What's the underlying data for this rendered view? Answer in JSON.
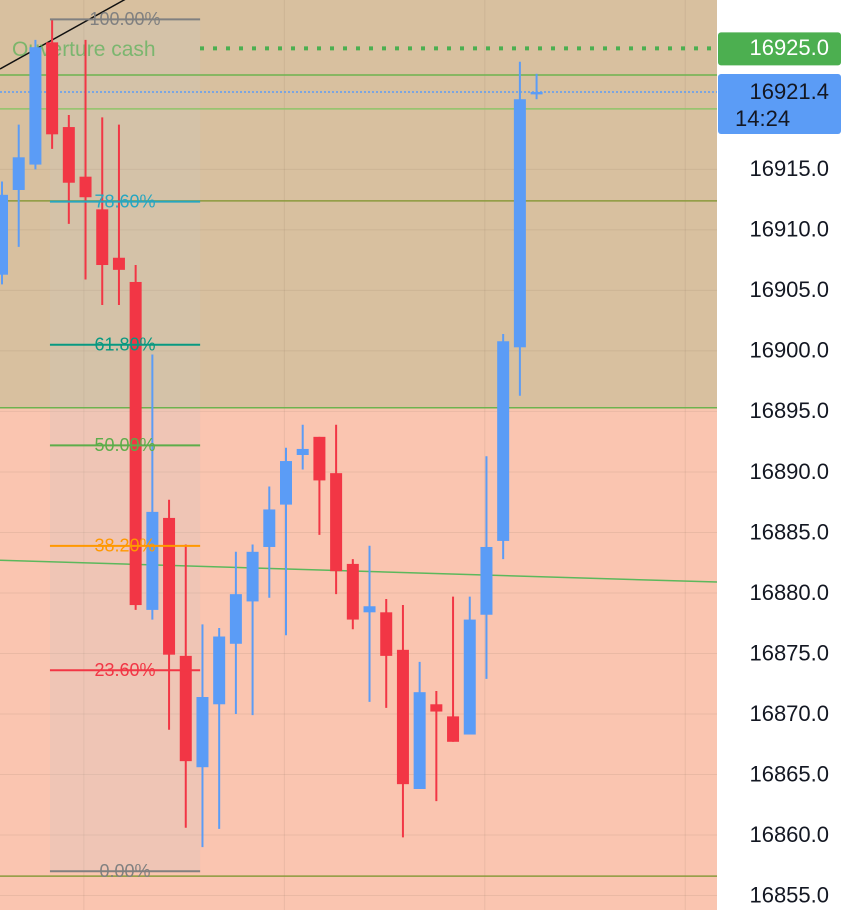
{
  "chart_data": {
    "type": "candlestick",
    "up_color": "#5b9cf6",
    "down_color": "#f23645",
    "ylim": [
      16853.8,
      16929.0
    ],
    "xlim": [
      -0.12,
      42.8
    ],
    "yticks": [
      {
        "value": 16855,
        "label": "16855.0"
      },
      {
        "value": 16860,
        "label": "16860.0"
      },
      {
        "value": 16865,
        "label": "16865.0"
      },
      {
        "value": 16870,
        "label": "16870.0"
      },
      {
        "value": 16875,
        "label": "16875.0"
      },
      {
        "value": 16880,
        "label": "16880.0"
      },
      {
        "value": 16885,
        "label": "16885.0"
      },
      {
        "value": 16890,
        "label": "16890.0"
      },
      {
        "value": 16895,
        "label": "16895.0"
      },
      {
        "value": 16900,
        "label": "16900.0"
      },
      {
        "value": 16905,
        "label": "16905.0"
      },
      {
        "value": 16910,
        "label": "16910.0"
      },
      {
        "value": 16915,
        "label": "16915.0"
      }
    ],
    "xgrid": [
      4.9,
      16.9,
      28.9,
      40.9
    ],
    "grid": true,
    "open": [
      16906.3,
      16913.3,
      16915.4,
      16925.5,
      16918.5,
      16914.4,
      16911.7,
      16907.7,
      16905.7,
      16878.6,
      16886.2,
      16874.8,
      16865.6,
      16870.8,
      16875.8,
      16879.3,
      16883.8,
      16887.3,
      16891.4,
      16892.9,
      16889.9,
      16882.4,
      16878.4,
      16878.4,
      16875.3,
      16863.8,
      16870.8,
      16869.8,
      16868.3,
      16878.2,
      16884.3,
      16900.3,
      16921.2
    ],
    "high": [
      16914.0,
      16918.7,
      16925.7,
      16927.4,
      16919.5,
      16925.7,
      16919.3,
      16918.7,
      16907.1,
      16899.7,
      16887.7,
      16884.0,
      16877.4,
      16877.1,
      16883.4,
      16884.0,
      16888.8,
      16892.0,
      16893.9,
      16892.9,
      16893.9,
      16882.8,
      16883.9,
      16879.5,
      16879.0,
      16874.3,
      16871.9,
      16879.7,
      16879.7,
      16891.3,
      16901.4,
      16923.9,
      16922.9
    ],
    "low": [
      16905.5,
      16908.6,
      16915.0,
      16916.7,
      16910.5,
      16905.9,
      16903.8,
      16903.8,
      16878.6,
      16877.8,
      16868.7,
      16860.6,
      16859.0,
      16860.5,
      16870.0,
      16869.9,
      16879.6,
      16876.5,
      16890.2,
      16884.8,
      16879.9,
      16877.0,
      16871.0,
      16870.5,
      16859.8,
      16863.8,
      16862.8,
      16867.7,
      16868.3,
      16872.9,
      16882.8,
      16896.3,
      16920.8
    ],
    "close": [
      16912.9,
      16916.0,
      16925.1,
      16917.9,
      16913.9,
      16912.7,
      16907.1,
      16906.7,
      16879.0,
      16886.7,
      16874.9,
      16866.1,
      16871.4,
      16876.4,
      16879.9,
      16883.4,
      16886.9,
      16890.9,
      16891.9,
      16889.3,
      16881.8,
      16877.8,
      16878.9,
      16874.8,
      16864.2,
      16871.8,
      16870.2,
      16867.7,
      16877.8,
      16883.8,
      16900.8,
      16920.8,
      16921.4
    ],
    "zones": [
      {
        "from": 16895.3,
        "to": 16929.0,
        "color": "#d8c09f"
      },
      {
        "from": 16853.8,
        "to": 16895.3,
        "color": "#fac5b0"
      }
    ],
    "levels": [
      {
        "value": 16922.8,
        "color": "#6cb34f"
      },
      {
        "value": 16920.0,
        "color": "#8fc46a"
      },
      {
        "value": 16912.4,
        "color": "#8a9a3c"
      },
      {
        "value": 16895.3,
        "color": "#6cb34f"
      },
      {
        "value": 16856.6,
        "color": "#8a9a3c"
      }
    ],
    "trendlines": [
      {
        "x": [
          -0.12,
          42.8
        ],
        "y": [
          16882.7,
          16880.9
        ],
        "color": "#5cb85c"
      },
      {
        "x": [
          -0.12,
          7.37
        ],
        "y": [
          16923.3,
          16929.05
        ],
        "color": "#111111"
      }
    ],
    "fib": {
      "x": [
        2.87,
        11.86
      ],
      "range": [
        16857.0,
        16927.4
      ],
      "levels": [
        {
          "value": 100,
          "label": "100.00%",
          "color": "#808080"
        },
        {
          "value": 78.6,
          "label": "78.60%",
          "color": "#26a6c0"
        },
        {
          "value": 61.8,
          "label": "61.80%",
          "color": "#089981"
        },
        {
          "value": 50,
          "label": "50.00%",
          "color": "#5cad4a"
        },
        {
          "value": 38.2,
          "label": "38.20%",
          "color": "#ff9800"
        },
        {
          "value": 23.6,
          "label": "23.60%",
          "color": "#f23645"
        },
        {
          "value": 0,
          "label": "0.00%",
          "color": "#808080"
        }
      ]
    },
    "ouverture": {
      "label": "Ouverture cash",
      "value": 16925.0,
      "value_label": "16925.0",
      "color": "#4caf50"
    },
    "last_price": {
      "value": 16921.4,
      "time": "14:24",
      "color": "#5b9cf6"
    }
  }
}
